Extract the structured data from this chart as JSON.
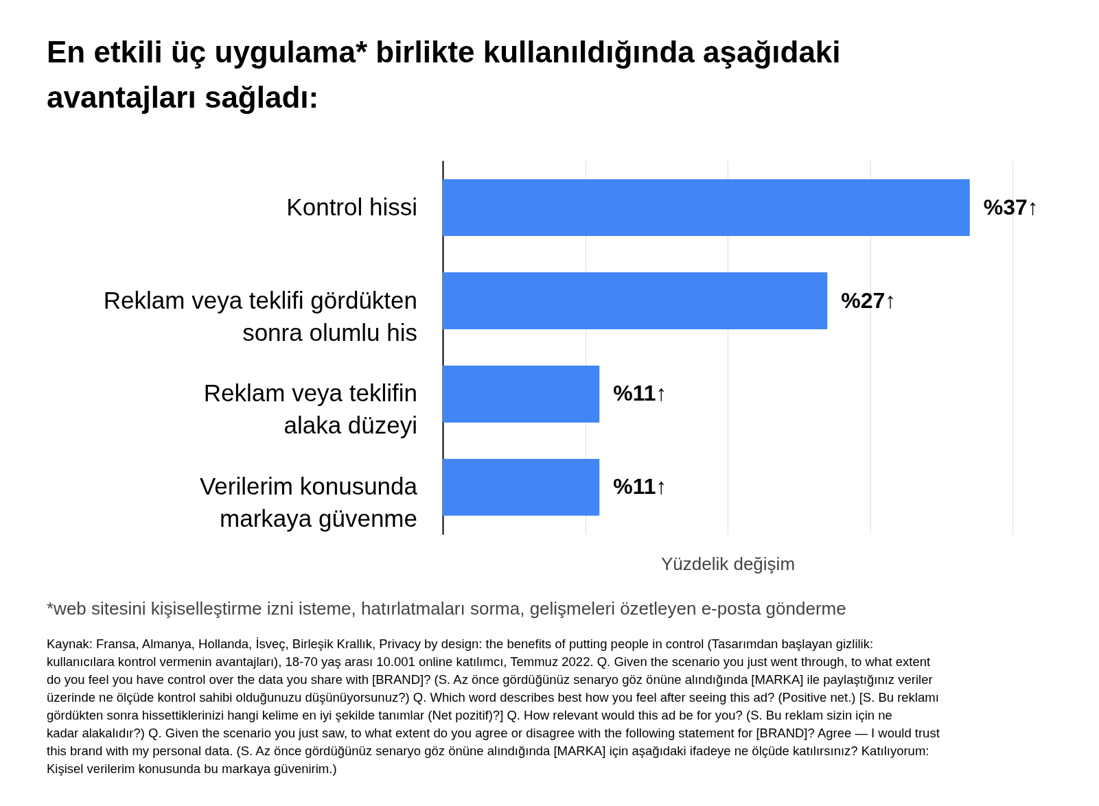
{
  "chart_data": {
    "type": "bar",
    "orientation": "horizontal",
    "title": "En etkili üç uygulama* birlikte kullanıldığında aşağıdaki avantajları sağladı:",
    "xlabel": "Yüzdelik değişim",
    "categories": [
      "Kontrol hissi",
      "Reklam veya teklifi gördükten\nsonra olumlu his",
      "Reklam veya teklifin\nalaka düzeyi",
      "Verilerim konusunda\nmarkaya güvenme"
    ],
    "values": [
      37,
      27,
      11,
      11
    ],
    "value_labels": [
      "%37↑",
      "%27↑",
      "%11↑",
      "%11↑"
    ],
    "color": "#4285f4",
    "xlim": [
      0,
      40
    ],
    "xticks": [
      {
        "value": 10,
        "label": null
      },
      {
        "value": 20,
        "label": null
      },
      {
        "value": 30,
        "label": null
      },
      {
        "value": 40,
        "label": null
      }
    ],
    "grid": "x",
    "annotations": [
      "*web sitesini kişiselleştirme izni isteme, hatırlatmaları sorma, gelişmeleri özetleyen e-posta gönderme",
      "Kaynak: Fransa, Almanya, Hollanda, İsveç, Birleşik Krallık, Privacy by design: the benefits of putting people in control (Tasarımdan başlayan gizlilik: kullanıcılara kontrol vermenin avantajları), 18-70 yaş arası 10.001 online katılımcı, Temmuz 2022. Q. Given the scenario you just went through, to what extent do you feel you have control over the data you share with [BRAND]? (S. Az önce gördüğünüz senaryo göz önüne alındığında [MARKA] ile paylaştığınız veriler üzerinde ne ölçüde kontrol sahibi olduğunuzu düşünüyorsunuz?) Q. Which word describes best how you feel after seeing this ad? (Positive net.) [S. Bu reklamı gördükten sonra hissettiklerinizi hangi kelime en iyi şekilde tanımlar (Net pozitif)?] Q. How relevant would this ad be for you? (S. Bu reklam sizin için ne kadar alakalıdır?) Q. Given the scenario you just saw, to what extent do you agree or disagree with the following statement for [BRAND]? Agree — I would trust this brand with my personal data. (S. Az önce gördüğünüz senaryo göz önüne alındığında [MARKA] için aşağıdaki ifadeye ne ölçüde katılırsınız? Katılıyorum: Kişisel verilerim konusunda bu markaya güvenirim.)"
    ]
  }
}
